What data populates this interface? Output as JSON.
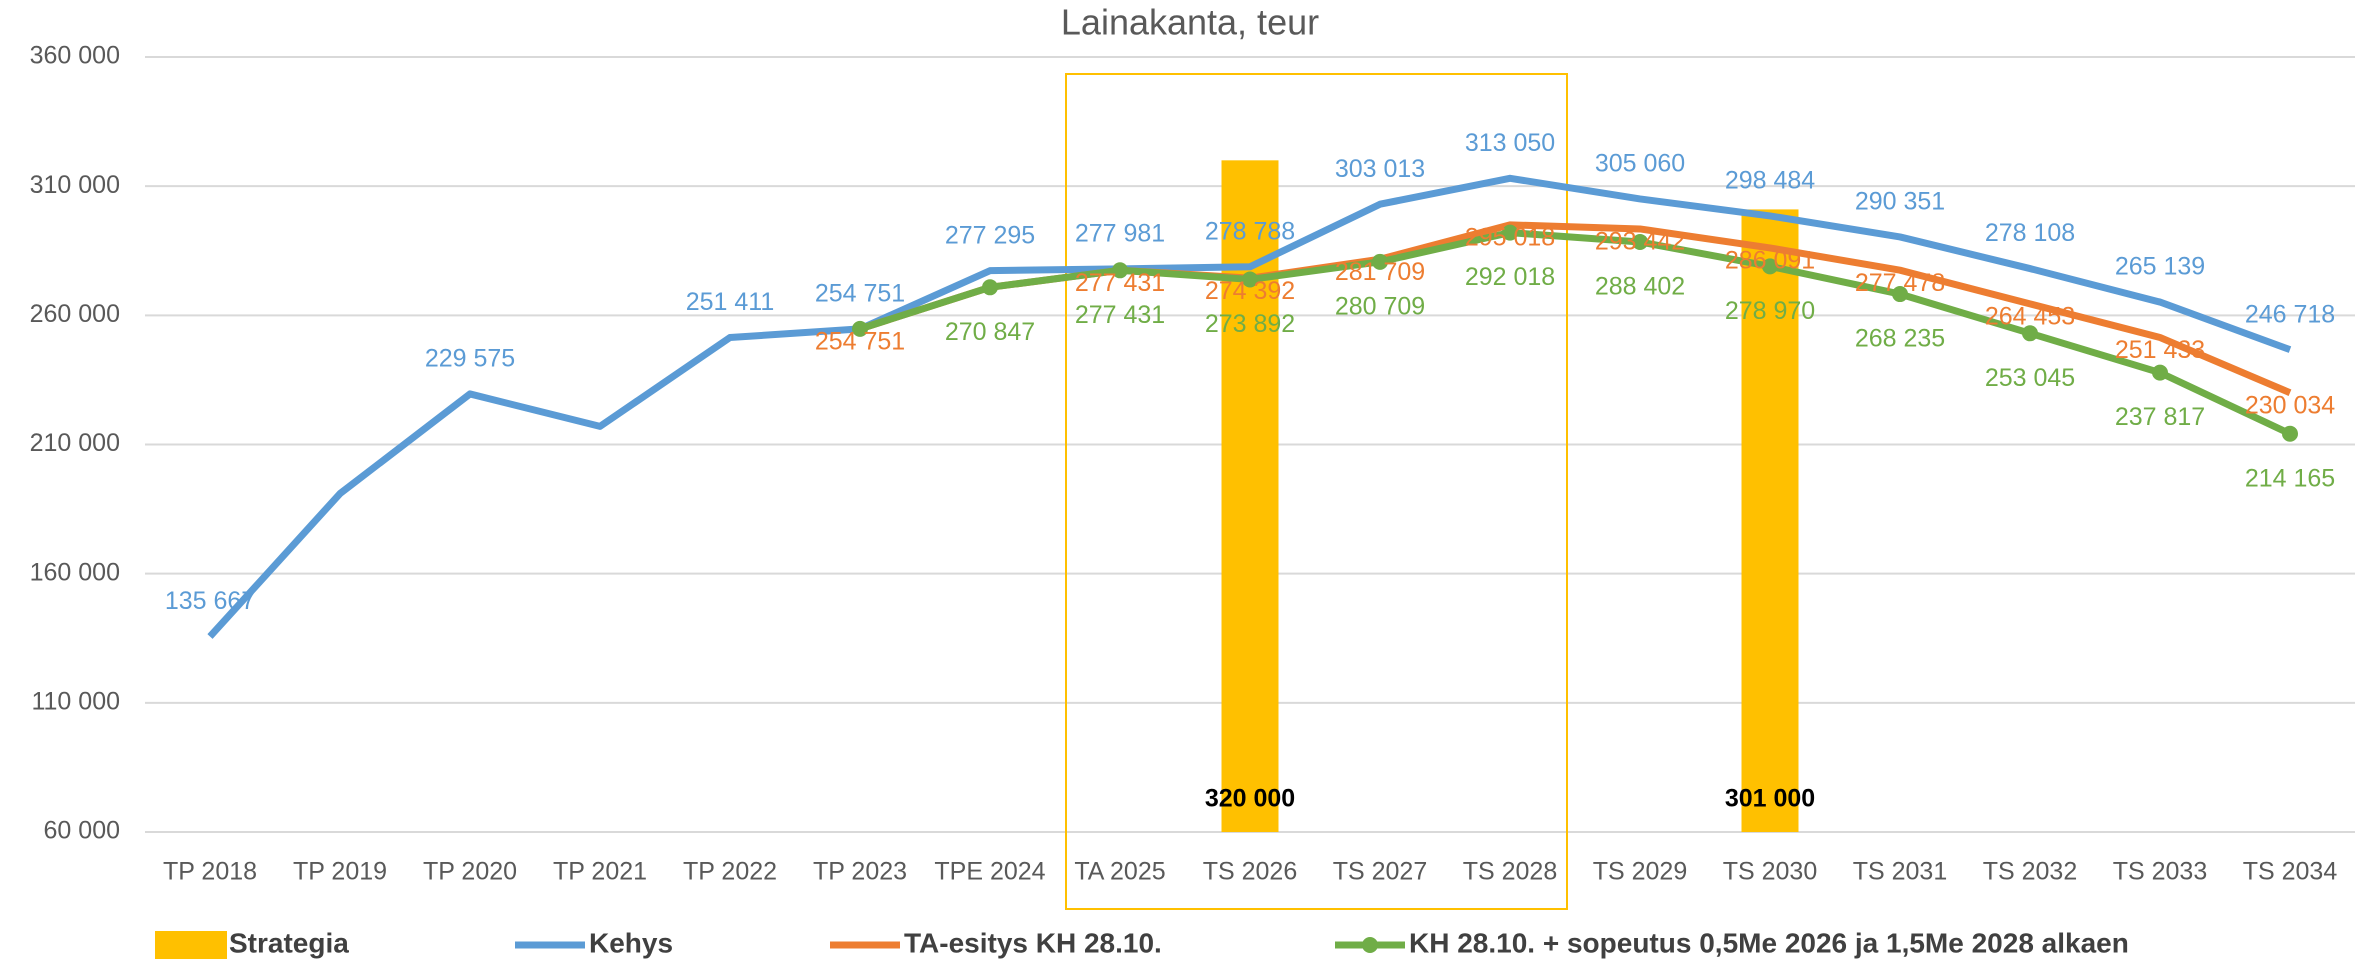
{
  "chart_data": {
    "type": "combo",
    "title": "Lainakanta, teur",
    "categories": [
      "TP 2018",
      "TP 2019",
      "TP 2020",
      "TP 2021",
      "TP 2022",
      "TP 2023",
      "TPE 2024",
      "TA 2025",
      "TS 2026",
      "TS 2027",
      "TS 2028",
      "TS 2029",
      "TS 2030",
      "TS 2031",
      "TS 2032",
      "TS 2033",
      "TS 2034"
    ],
    "ylim": [
      60000,
      360000
    ],
    "yticks": [
      {
        "value": 60000,
        "label": "60 000"
      },
      {
        "value": 110000,
        "label": "110 000"
      },
      {
        "value": 160000,
        "label": "160 000"
      },
      {
        "value": 210000,
        "label": "210 000"
      },
      {
        "value": 260000,
        "label": "260 000"
      },
      {
        "value": 310000,
        "label": "310 000"
      },
      {
        "value": 360000,
        "label": "360 000"
      }
    ],
    "grid": true,
    "legend": "bottom",
    "series": [
      {
        "name": "Strategia",
        "type": "bar",
        "color": "#ffc000",
        "values": [
          null,
          null,
          null,
          null,
          null,
          null,
          null,
          null,
          320000,
          null,
          null,
          null,
          301000,
          null,
          null,
          null,
          null
        ],
        "value_labels": [
          null,
          null,
          null,
          null,
          null,
          null,
          null,
          null,
          "320 000",
          null,
          null,
          null,
          "301 000",
          null,
          null,
          null,
          null
        ]
      },
      {
        "name": "Kehys",
        "type": "line",
        "color": "#5b9bd5",
        "values": [
          135667,
          191000,
          229575,
          217000,
          251411,
          254751,
          277295,
          277981,
          278788,
          303013,
          313050,
          305060,
          298484,
          290351,
          278108,
          265139,
          246718
        ],
        "value_labels": [
          "135 667",
          null,
          "229 575",
          null,
          "251 411",
          "254 751",
          "277 295",
          "277 981",
          "278 788",
          "303 013",
          "313 050",
          "305 060",
          "298 484",
          "290 351",
          "278 108",
          "265 139",
          "246 718"
        ]
      },
      {
        "name": "TA-esitys KH 28.10.",
        "type": "line",
        "color": "#ed7d31",
        "values": [
          null,
          null,
          null,
          null,
          null,
          254751,
          270847,
          277431,
          274392,
          281709,
          295018,
          293442,
          286091,
          277478,
          264453,
          251433,
          230034
        ],
        "value_labels": [
          null,
          null,
          null,
          null,
          null,
          "254 751",
          null,
          "277 431",
          "274 392",
          "281 709",
          "295 018",
          "293 442",
          "286 091",
          "277 478",
          "264 453",
          "251 433",
          "230 034"
        ]
      },
      {
        "name": "KH 28.10. + sopeutus 0,5Me 2026 ja 1,5Me 2028 alkaen",
        "type": "line",
        "markers": true,
        "color": "#70ad47",
        "values": [
          null,
          null,
          null,
          null,
          null,
          254751,
          270847,
          277431,
          273892,
          280709,
          292018,
          288402,
          278970,
          268235,
          253045,
          237817,
          214165
        ],
        "value_labels": [
          null,
          null,
          null,
          null,
          null,
          null,
          "270 847",
          "277 431",
          "273 892",
          "280 709",
          "292 018",
          "288 402",
          "278 970",
          "268 235",
          "253 045",
          "237 817",
          "214 165"
        ]
      }
    ]
  }
}
